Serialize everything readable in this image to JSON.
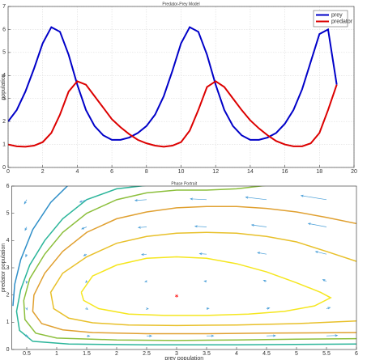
{
  "chart_data": [
    {
      "type": "line",
      "title": "Predator-Prey Model",
      "ylabel": "population",
      "x": [
        0,
        0.5,
        1,
        1.5,
        2,
        2.5,
        3,
        3.5,
        4,
        4.5,
        5,
        5.5,
        6,
        6.5,
        7,
        7.5,
        8,
        8.5,
        9,
        9.5,
        10,
        10.5,
        11,
        11.5,
        12,
        12.5,
        13,
        13.5,
        14,
        14.5,
        15,
        15.5,
        16,
        16.5,
        17,
        17.5,
        18,
        18.5,
        19
      ],
      "series": [
        {
          "name": "prey",
          "color": "#0000c8",
          "values": [
            2.0,
            2.5,
            3.3,
            4.3,
            5.4,
            6.1,
            5.9,
            4.9,
            3.6,
            2.5,
            1.8,
            1.4,
            1.2,
            1.2,
            1.3,
            1.5,
            1.8,
            2.3,
            3.1,
            4.2,
            5.4,
            6.1,
            5.9,
            4.9,
            3.6,
            2.5,
            1.8,
            1.4,
            1.2,
            1.2,
            1.3,
            1.5,
            1.9,
            2.5,
            3.4,
            4.6,
            5.8,
            6.0,
            3.6
          ]
        },
        {
          "name": "predator",
          "color": "#dc0000",
          "values": [
            1.0,
            0.92,
            0.9,
            0.95,
            1.1,
            1.5,
            2.3,
            3.3,
            3.75,
            3.6,
            3.1,
            2.6,
            2.1,
            1.75,
            1.45,
            1.2,
            1.05,
            0.95,
            0.9,
            0.95,
            1.1,
            1.6,
            2.5,
            3.5,
            3.75,
            3.5,
            3.0,
            2.5,
            2.05,
            1.7,
            1.4,
            1.15,
            1.0,
            0.92,
            0.92,
            1.05,
            1.5,
            2.5,
            3.6
          ]
        }
      ],
      "xlim": [
        0,
        20
      ],
      "xticks": [
        0,
        2,
        4,
        6,
        8,
        10,
        12,
        14,
        16,
        18,
        20
      ],
      "ylim": [
        0,
        7
      ],
      "yticks": [
        0,
        1,
        2,
        3,
        4,
        5,
        6,
        7
      ],
      "grid": true,
      "legend": "northeast"
    },
    {
      "type": "contour",
      "title": "Phase Portrait",
      "xlabel": "prey population",
      "ylabel": "predator population",
      "xlim": [
        0.25,
        6
      ],
      "xticks": [
        0.5,
        1,
        1.5,
        2,
        2.5,
        3,
        3.5,
        4,
        4.5,
        5,
        5.5,
        6
      ],
      "ylim": [
        0,
        6
      ],
      "yticks": [
        0,
        1,
        2,
        3,
        4,
        5,
        6
      ],
      "grid": false,
      "contours": [
        {
          "color": "#f5e61e",
          "x": [
            1.41,
            1.6,
            2.0,
            2.5,
            3.0,
            3.5,
            4.0,
            4.5,
            5.0,
            5.4,
            5.57,
            5.3,
            4.8,
            4.2,
            3.5,
            2.8,
            2.2,
            1.7,
            1.45,
            1.41
          ],
          "y": [
            2.1,
            2.7,
            3.1,
            3.35,
            3.4,
            3.35,
            3.15,
            2.85,
            2.45,
            2.1,
            1.9,
            1.6,
            1.4,
            1.3,
            1.25,
            1.25,
            1.3,
            1.5,
            1.8,
            2.1
          ]
        },
        {
          "color": "#e8c02a",
          "x": [
            6.05,
            5.5,
            5,
            4.5,
            4,
            3.5,
            3,
            2.5,
            2,
            1.5,
            1.1,
            0.9,
            0.95,
            1.2,
            1.6,
            2.2,
            3,
            4,
            5,
            6.05
          ],
          "y": [
            3.2,
            3.6,
            3.95,
            4.15,
            4.27,
            4.3,
            4.27,
            4.15,
            3.9,
            3.4,
            2.8,
            2.1,
            1.5,
            1.15,
            0.98,
            0.9,
            0.88,
            0.9,
            0.95,
            1.05
          ]
        },
        {
          "color": "#e0a030",
          "x": [
            6.05,
            5.5,
            5,
            4.5,
            4,
            3.5,
            3,
            2.5,
            2,
            1.5,
            1.1,
            0.8,
            0.62,
            0.6,
            0.75,
            1.1,
            1.6,
            2.5,
            3.5,
            4.5,
            6.05
          ],
          "y": [
            4.6,
            4.85,
            5.05,
            5.18,
            5.25,
            5.25,
            5.2,
            5.05,
            4.8,
            4.3,
            3.6,
            2.8,
            2.0,
            1.4,
            0.95,
            0.72,
            0.62,
            0.58,
            0.58,
            0.6,
            0.62
          ]
        },
        {
          "color": "#8cbf3c",
          "x": [
            4.6,
            4,
            3.5,
            3,
            2.5,
            2,
            1.5,
            1.1,
            0.8,
            0.55,
            0.45,
            0.47,
            0.65,
            1.0,
            2,
            3,
            4,
            5,
            6.05
          ],
          "y": [
            6.05,
            5.9,
            5.85,
            5.85,
            5.75,
            5.5,
            5.0,
            4.3,
            3.5,
            2.6,
            1.8,
            1.1,
            0.6,
            0.42,
            0.35,
            0.33,
            0.35,
            0.38,
            0.4
          ]
        },
        {
          "color": "#2bb59a",
          "x": [
            2.6,
            2,
            1.5,
            1.1,
            0.8,
            0.55,
            0.4,
            0.33,
            0.38,
            0.6,
            1.2,
            2.5,
            4,
            6.05
          ],
          "y": [
            6.05,
            5.9,
            5.5,
            4.8,
            4.0,
            3.1,
            2.2,
            1.4,
            0.7,
            0.3,
            0.2,
            0.17,
            0.17,
            0.2
          ]
        },
        {
          "color": "#2f8fc8",
          "x": [
            1.2,
            0.9,
            0.6,
            0.4,
            0.3,
            0.27
          ],
          "y": [
            6.05,
            5.4,
            4.4,
            3.3,
            2.4,
            1.6
          ]
        }
      ],
      "quiver": {
        "color": "#4a9fd8",
        "x": [
          0.5,
          1.5,
          2.5,
          3.5,
          4.5,
          5.5
        ],
        "y": [
          0.5,
          1.5,
          2.5,
          3.5,
          4.5,
          5.5
        ],
        "u": [
          [
            0.375,
            1.125,
            1.875,
            2.625,
            3.375,
            4.125
          ],
          [
            0.125,
            0.375,
            0.625,
            0.875,
            1.125,
            1.375
          ],
          [
            -0.125,
            -0.375,
            -0.625,
            -0.875,
            -1.125,
            -1.375
          ],
          [
            -0.375,
            -1.125,
            -1.875,
            -2.625,
            -3.375,
            -4.125
          ],
          [
            -0.625,
            -1.875,
            -3.125,
            -4.375,
            -5.625,
            -6.875
          ],
          [
            -0.875,
            -2.625,
            -4.375,
            -6.125,
            -7.875,
            -9.625
          ]
        ],
        "v": [
          [
            -0.3125,
            -0.1875,
            -0.0625,
            0.0625,
            0.1875,
            0.3125
          ],
          [
            -0.9375,
            -0.5625,
            -0.1875,
            0.1875,
            0.5625,
            0.9375
          ],
          [
            -1.5625,
            -0.9375,
            -0.3125,
            0.3125,
            0.9375,
            1.5625
          ],
          [
            -2.1875,
            -1.3125,
            -0.4375,
            0.4375,
            1.3125,
            2.1875
          ],
          [
            -2.8125,
            -1.6875,
            -0.5625,
            0.5625,
            1.6875,
            2.8125
          ],
          [
            -3.4375,
            -2.0625,
            -0.6875,
            0.6875,
            2.0625,
            3.4375
          ]
        ]
      },
      "equilibrium": {
        "color": "#ff0000",
        "point": [
          3,
          2
        ]
      }
    }
  ]
}
